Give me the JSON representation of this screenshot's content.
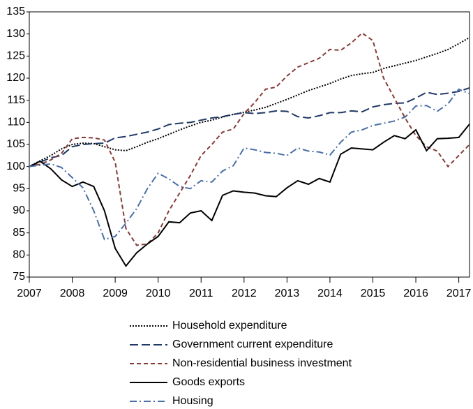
{
  "chart_data": {
    "type": "line",
    "x": [
      2007,
      2007.25,
      2007.5,
      2007.75,
      2008,
      2008.25,
      2008.5,
      2008.75,
      2009,
      2009.25,
      2009.5,
      2009.75,
      2010,
      2010.25,
      2010.5,
      2010.75,
      2011,
      2011.25,
      2011.5,
      2011.75,
      2012,
      2012.25,
      2012.5,
      2012.75,
      2013,
      2013.25,
      2013.5,
      2013.75,
      2014,
      2014.25,
      2014.5,
      2014.75,
      2015,
      2015.25,
      2015.5,
      2015.75,
      2016,
      2016.25,
      2016.5,
      2016.75,
      2017,
      2017.25
    ],
    "series": [
      {
        "name": "Household expenditure",
        "color": "#000000",
        "dash": "2,2",
        "values": [
          100,
          101.3,
          102.5,
          104,
          105,
          105.3,
          105.2,
          104.5,
          103.8,
          103.6,
          104.5,
          105.5,
          106.3,
          107.3,
          108.3,
          109.2,
          110,
          110.5,
          111.2,
          111.8,
          112.3,
          112.8,
          113.4,
          114.3,
          115.2,
          116.2,
          117.2,
          118,
          118.8,
          119.8,
          120.6,
          121,
          121.3,
          122.2,
          122.8,
          123.4,
          124,
          124.8,
          125.6,
          126.5,
          127.8,
          129.2
        ]
      },
      {
        "name": "Government current expenditure",
        "color": "#1f3864",
        "dash": "12,5",
        "values": [
          100,
          101,
          102,
          102.5,
          104.5,
          105,
          105.2,
          105.3,
          106.5,
          106.8,
          107.3,
          107.8,
          108.5,
          109.5,
          109.8,
          110,
          110.5,
          111,
          111.3,
          111.8,
          112.2,
          112,
          112.2,
          112.6,
          112.5,
          111.3,
          111,
          111.5,
          112.2,
          112.2,
          112.6,
          112.4,
          113.5,
          114,
          114.3,
          114.4,
          115.5,
          116.8,
          116.3,
          116.6,
          117,
          117.8
        ]
      },
      {
        "name": "Non-residential business investment",
        "color": "#843c39",
        "dash": "6,4",
        "values": [
          100,
          100.5,
          101.5,
          103,
          106.3,
          106.6,
          106.5,
          106,
          101,
          86,
          82.2,
          82.5,
          85,
          90,
          94,
          98,
          102.5,
          105,
          107.8,
          108.5,
          112,
          114.5,
          117.5,
          118,
          120.5,
          122.5,
          123.5,
          124.5,
          126.5,
          126.3,
          128,
          130.2,
          128.5,
          120,
          115.5,
          111,
          107,
          104.5,
          103.5,
          100,
          102.5,
          105
        ]
      },
      {
        "name": "Goods exports",
        "color": "#000000",
        "dash": "",
        "values": [
          100,
          101.2,
          99.5,
          97,
          95.5,
          96.5,
          95.5,
          90,
          81.5,
          77.5,
          80.5,
          82.5,
          84.2,
          87.5,
          87.3,
          89.5,
          90,
          87.8,
          93.5,
          94.5,
          94.2,
          94,
          93.4,
          93.2,
          95.2,
          96.8,
          96,
          97.3,
          96.5,
          102.8,
          104.2,
          104,
          103.8,
          105.5,
          107,
          106.3,
          108.3,
          103.6,
          106.3,
          106.4,
          106.6,
          109.6
        ]
      },
      {
        "name": "Housing",
        "color": "#4a6fa5",
        "dash": "10,4,2,4",
        "values": [
          100,
          100.3,
          100.6,
          99.8,
          97.5,
          95.2,
          90,
          83.5,
          84.2,
          87.2,
          90.5,
          95,
          98.5,
          97.2,
          95.5,
          95,
          96.8,
          96.5,
          99,
          100.2,
          104.2,
          103.8,
          103.2,
          103,
          102.5,
          104.2,
          103.5,
          103.3,
          102.6,
          105.5,
          107.8,
          108.3,
          109.3,
          109.8,
          110.3,
          111.2,
          113.7,
          113.8,
          112.5,
          114.2,
          117.5,
          116.5
        ]
      }
    ],
    "xlim": [
      2007,
      2017.25
    ],
    "xticks": [
      2007,
      2008,
      2009,
      2010,
      2011,
      2012,
      2013,
      2014,
      2015,
      2016,
      2017
    ],
    "ylim": [
      75,
      135
    ],
    "yticks": [
      75,
      80,
      85,
      90,
      95,
      100,
      105,
      110,
      115,
      120,
      125,
      130,
      135
    ],
    "grid": false,
    "legend": "bottom"
  }
}
